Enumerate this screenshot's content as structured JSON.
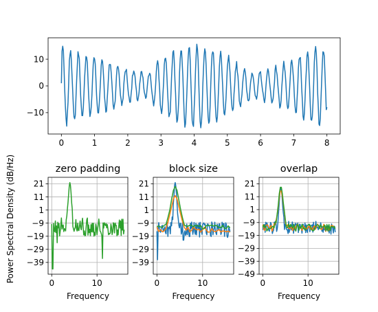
{
  "chart_data": [
    {
      "type": "line",
      "title": "",
      "xlabel": "",
      "ylabel": "",
      "xlim": [
        -0.4,
        8.4
      ],
      "ylim": [
        -18,
        18
      ],
      "xticks": [
        0,
        1,
        2,
        3,
        4,
        5,
        6,
        7,
        8
      ],
      "yticks": [
        10,
        0,
        -10
      ],
      "grid": false,
      "signal": {
        "x_start": 0,
        "x_end": 8,
        "n_points": 401,
        "carrier_cycles_per_unit": 4.2,
        "envelope": [
          {
            "x": 0.0,
            "amp": 15.0
          },
          {
            "x": 0.4,
            "amp": 13.0
          },
          {
            "x": 1.0,
            "amp": 11.0
          },
          {
            "x": 1.6,
            "amp": 8.0
          },
          {
            "x": 2.0,
            "amp": 6.0
          },
          {
            "x": 2.3,
            "amp": 5.0
          },
          {
            "x": 2.6,
            "amp": 4.5
          },
          {
            "x": 3.0,
            "amp": 10.0
          },
          {
            "x": 3.5,
            "amp": 14.0
          },
          {
            "x": 4.0,
            "amp": 15.5
          },
          {
            "x": 4.5,
            "amp": 14.0
          },
          {
            "x": 5.0,
            "amp": 11.0
          },
          {
            "x": 5.5,
            "amp": 6.0
          },
          {
            "x": 6.0,
            "amp": 5.0
          },
          {
            "x": 6.5,
            "amp": 7.0
          },
          {
            "x": 7.0,
            "amp": 10.0
          },
          {
            "x": 7.5,
            "amp": 13.0
          },
          {
            "x": 7.8,
            "amp": 15.0
          },
          {
            "x": 8.0,
            "amp": 12.0
          }
        ]
      },
      "series": [
        {
          "color": "#1f77b4"
        }
      ]
    },
    {
      "type": "line",
      "title": "zero padding",
      "xlabel": "Frequency",
      "ylabel": "Power Spectral Density (dB/Hz)",
      "xlim": [
        -0.8,
        16.8
      ],
      "ylim": [
        -48,
        26
      ],
      "xticks": [
        0,
        10
      ],
      "yticks": [
        21,
        11,
        1,
        -9,
        -19,
        -29,
        -39
      ],
      "grid": true,
      "peak_freq": 4,
      "series": [
        {
          "color": "#1f77b4",
          "style": "hidden",
          "base": -12,
          "spread": 7
        },
        {
          "color": "#ff7f0e",
          "style": "hidden",
          "base": -12,
          "spread": 7
        },
        {
          "color": "#2ca02c",
          "style": "noisy",
          "base": -12,
          "spread": 7,
          "peak": 22,
          "dips": [
            [
              0.2,
              -44
            ],
            [
              11.2,
              -36
            ],
            [
              1.2,
              -24
            ]
          ]
        }
      ]
    },
    {
      "type": "line",
      "title": "block size",
      "xlabel": "Frequency",
      "ylabel": "",
      "xlim": [
        -0.8,
        16.8
      ],
      "ylim": [
        -48,
        26
      ],
      "xticks": [
        0,
        10
      ],
      "yticks": [
        21,
        11,
        1,
        -9,
        -19,
        -29,
        -39
      ],
      "grid": true,
      "peak_freq": 4,
      "series": [
        {
          "color": "#1f77b4",
          "style": "noisy",
          "base": -14,
          "spread": 6,
          "peak": 22,
          "dips": [
            [
              0.1,
              -37
            ],
            [
              5.8,
              -22
            ]
          ]
        },
        {
          "color": "#ff7f0e",
          "style": "smooth",
          "base": -14,
          "spread": 4,
          "peak": 12
        },
        {
          "color": "#2ca02c",
          "style": "smooth",
          "base": -12,
          "spread": 3,
          "peak": 19
        }
      ]
    },
    {
      "type": "line",
      "title": "overlap",
      "xlabel": "Frequency",
      "ylabel": "",
      "xlim": [
        -0.8,
        16.8
      ],
      "ylim": [
        -49,
        26
      ],
      "xticks": [
        0,
        10
      ],
      "yticks": [
        21,
        11,
        1,
        -9,
        -19,
        -29,
        -39,
        -49
      ],
      "grid": true,
      "peak_freq": 4,
      "series": [
        {
          "color": "#1f77b4",
          "style": "noisy",
          "base": -13,
          "spread": 5,
          "peak": 18
        },
        {
          "color": "#ff7f0e",
          "style": "medium",
          "base": -13,
          "spread": 4,
          "peak": 16
        },
        {
          "color": "#2ca02c",
          "style": "medium",
          "base": -13,
          "spread": 4,
          "peak": 19
        }
      ]
    }
  ]
}
